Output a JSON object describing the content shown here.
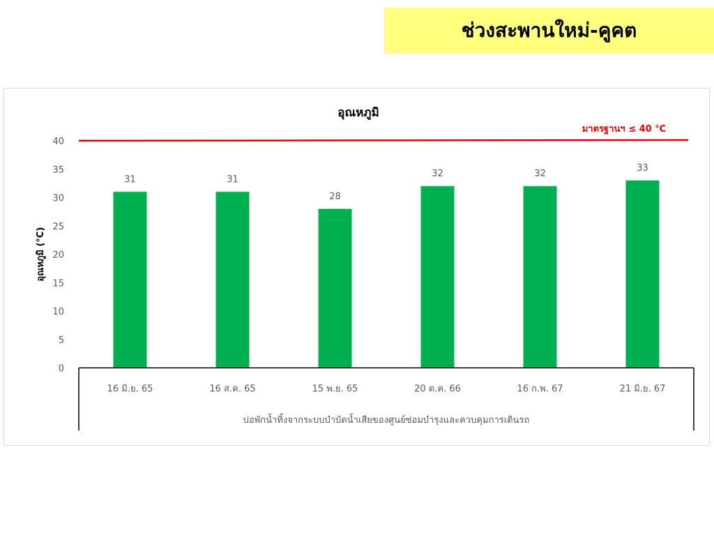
{
  "banner": {
    "title": "ช่วงสะพานใหม่-คูคต",
    "background": "#ffff80"
  },
  "chart_data": {
    "type": "bar",
    "title": "อุณหภูมิ",
    "ylabel": "อุณหภูมิ (°C)",
    "xlabel": "บ่อพักน้ำทิ้งจากระบบบำบัดน้ำเสียของศูนย์ซ่อมบำรุงและควบคุมการเดินรถ",
    "categories": [
      "16 มิ.ย. 65",
      "16 ส.ค. 65",
      "15 พ.ย. 65",
      "20 ต.ค. 66",
      "16 ก.พ. 67",
      "21 มิ.ย. 67"
    ],
    "values": [
      31,
      31,
      28,
      32,
      32,
      33
    ],
    "ylim": [
      0,
      40
    ],
    "yticks": [
      0,
      5,
      10,
      15,
      20,
      25,
      30,
      35,
      40
    ],
    "grid": false,
    "bar_color": "#00b050",
    "reference_line": {
      "value": 40,
      "label": "มาตรฐานฯ ≤ 40 ℃",
      "color": "#e00000"
    }
  }
}
